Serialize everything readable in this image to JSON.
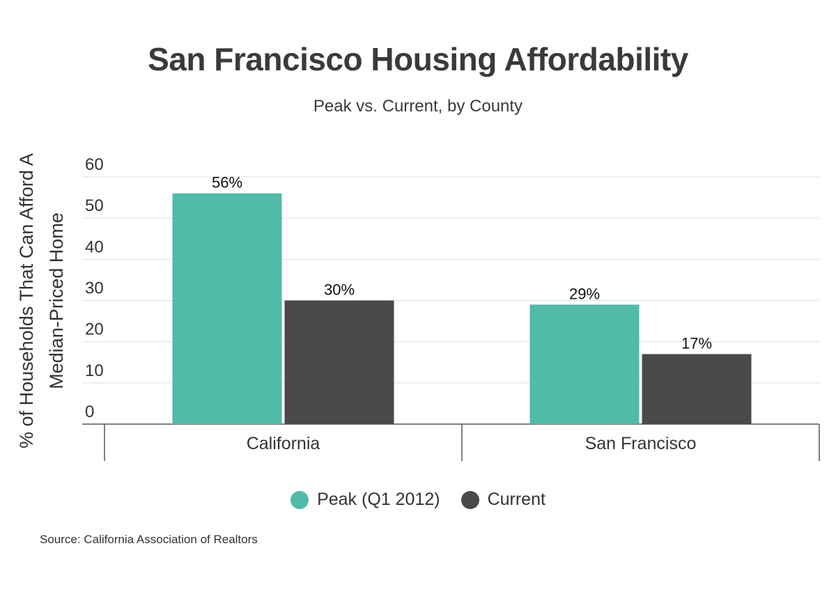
{
  "chart_data": {
    "type": "bar",
    "title": "San Francisco Housing Affordability",
    "subtitle": "Peak vs. Current, by County",
    "ylabel_lines": [
      "% of Households That Can Afford A",
      "Median-Priced Home"
    ],
    "xlabel": "",
    "categories": [
      "California",
      "San Francisco"
    ],
    "series": [
      {
        "name": "Peak (Q1 2012)",
        "color": "#4fbba8",
        "values": [
          56,
          29
        ],
        "labels": [
          "56%",
          "29%"
        ]
      },
      {
        "name": "Current",
        "color": "#4a4a4a",
        "values": [
          30,
          17
        ],
        "labels": [
          "30%",
          "17%"
        ]
      }
    ],
    "ylim": [
      0,
      60
    ],
    "yticks": [
      0,
      10,
      20,
      30,
      40,
      50,
      60
    ],
    "grid": true,
    "legend": "bottom"
  },
  "source_note": "Source:  California Association of Realtors"
}
